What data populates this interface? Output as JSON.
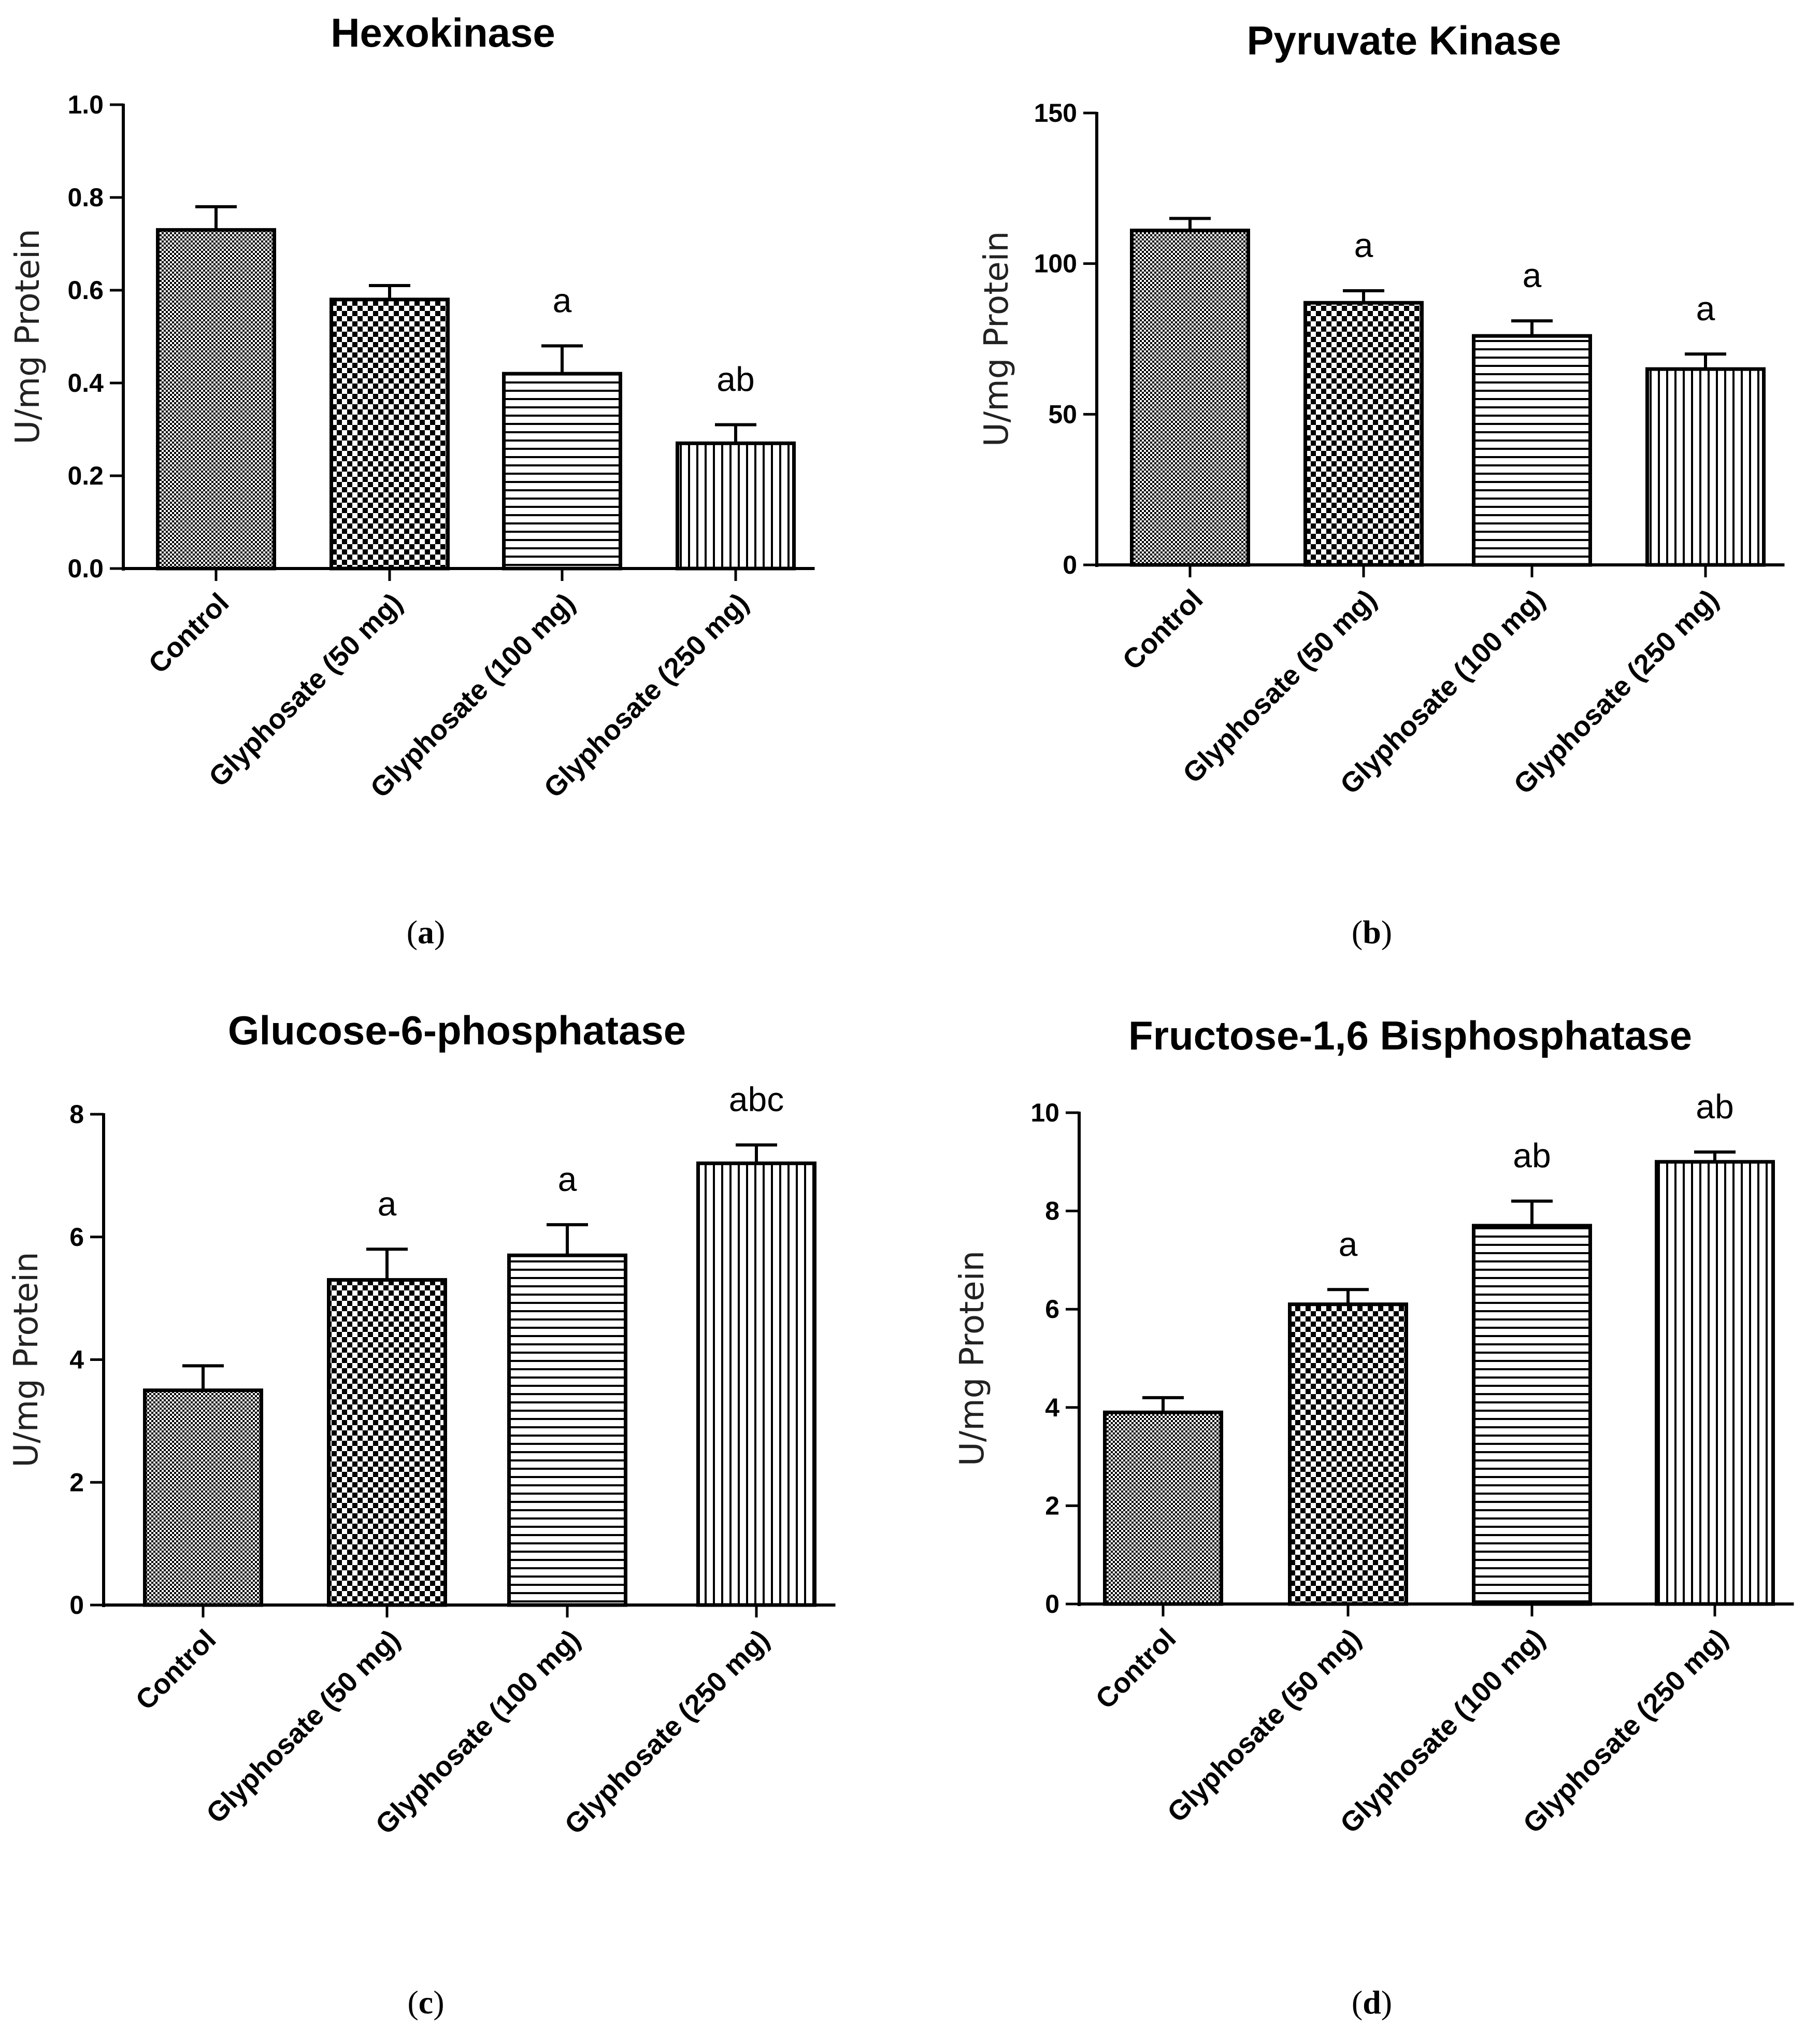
{
  "chart_data": [
    {
      "panel": "(a)",
      "panel_letter": "a",
      "type": "bar",
      "title": "Hexokinase",
      "ylabel": "U/mg Protein",
      "xlabel": "",
      "ylim": [
        0,
        1.0
      ],
      "yticks": [
        "0.0",
        "0.2",
        "0.4",
        "0.6",
        "0.8",
        "1.0"
      ],
      "categories": [
        "Control",
        "Glyphosate (50 mg)",
        "Glyphosate (100 mg)",
        "Glyphosate (250 mg)"
      ],
      "values": [
        0.73,
        0.58,
        0.42,
        0.27
      ],
      "errors": [
        0.05,
        0.03,
        0.06,
        0.04
      ],
      "significance": [
        "",
        "",
        "a",
        "ab"
      ]
    },
    {
      "panel": "(b)",
      "panel_letter": "b",
      "type": "bar",
      "title": "Pyruvate Kinase",
      "ylabel": "U/mg Protein",
      "xlabel": "",
      "ylim": [
        0,
        150
      ],
      "yticks": [
        "0",
        "50",
        "100",
        "150"
      ],
      "categories": [
        "Control",
        "Glyphosate (50 mg)",
        "Glyphosate (100 mg)",
        "Glyphosate (250 mg)"
      ],
      "values": [
        111,
        87,
        76,
        65
      ],
      "errors": [
        4,
        4,
        5,
        5
      ],
      "significance": [
        "",
        "a",
        "a",
        "a"
      ]
    },
    {
      "panel": "(c)",
      "panel_letter": "c",
      "type": "bar",
      "title": "Glucose-6-phosphatase",
      "ylabel": "U/mg Protein",
      "xlabel": "",
      "ylim": [
        0,
        8
      ],
      "yticks": [
        "0",
        "2",
        "4",
        "6",
        "8"
      ],
      "categories": [
        "Control",
        "Glyphosate (50 mg)",
        "Glyphosate (100 mg)",
        "Glyphosate (250 mg)"
      ],
      "values": [
        3.5,
        5.3,
        5.7,
        7.2
      ],
      "errors": [
        0.4,
        0.5,
        0.5,
        0.3
      ],
      "significance": [
        "",
        "a",
        "a",
        "abc"
      ]
    },
    {
      "panel": "(d)",
      "panel_letter": "d",
      "type": "bar",
      "title": "Fructose-1,6 Bisphosphatase",
      "ylabel": "U/mg Protein",
      "xlabel": "",
      "ylim": [
        0,
        10
      ],
      "yticks": [
        "0",
        "2",
        "4",
        "6",
        "8",
        "10"
      ],
      "categories": [
        "Control",
        "Glyphosate (50 mg)",
        "Glyphosate (100 mg)",
        "Glyphosate (250 mg)"
      ],
      "values": [
        3.9,
        6.1,
        7.7,
        9.0
      ],
      "errors": [
        0.3,
        0.3,
        0.5,
        0.2
      ],
      "significance": [
        "",
        "a",
        "ab",
        "ab"
      ]
    }
  ]
}
